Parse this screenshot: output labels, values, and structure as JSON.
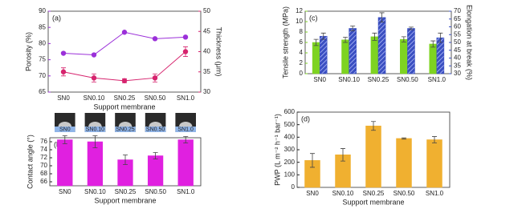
{
  "chart_data": [
    {
      "type": "line",
      "label": "(a)",
      "x_label": "Support membrane",
      "y_label": "Porosity (%)",
      "y2_label": "Thickness (μm)",
      "categories": [
        "SN0",
        "SN0.10",
        "SN0.25",
        "SN0.50",
        "SN1.0"
      ],
      "ylim": [
        65,
        90
      ],
      "yticks": [
        65,
        70,
        75,
        80,
        85,
        90
      ],
      "y2lim": [
        30,
        50
      ],
      "y2ticks": [
        30,
        35,
        40,
        45,
        50
      ],
      "series": [
        {
          "name": "Porosity",
          "color": "#9b30d9",
          "values": [
            77,
            76.5,
            83.5,
            81.5,
            82
          ]
        },
        {
          "name": "Thickness",
          "color": "#d6246e",
          "axis": "y2",
          "values": [
            35,
            33.5,
            32.8,
            33.5,
            40
          ],
          "errors": [
            1,
            1,
            0.5,
            1,
            1.2
          ]
        }
      ]
    },
    {
      "type": "bar",
      "label": "(c)",
      "y_label": "Tensile strength (MPa)",
      "y2_label": "Elongation at break (%)",
      "categories": [
        "SN0",
        "SN0.10",
        "SN0.25",
        "SN0.50",
        "SN1.0"
      ],
      "ylim": [
        0,
        12
      ],
      "yticks": [
        0,
        2,
        4,
        6,
        8,
        10,
        12
      ],
      "y2lim": [
        30,
        70
      ],
      "y2ticks": [
        30,
        35,
        40,
        45,
        50,
        55,
        60,
        65,
        70
      ],
      "series": [
        {
          "name": "Tensile strength",
          "color": "#7ed321",
          "values": [
            6.0,
            6.5,
            7.1,
            6.6,
            5.7
          ],
          "errors": [
            0.6,
            0.5,
            0.7,
            0.5,
            0.6
          ]
        },
        {
          "name": "Elongation at break",
          "color": "#3a4fc1",
          "axis": "y2",
          "values": [
            54,
            59,
            66,
            59,
            53
          ],
          "errors": [
            2,
            1.5,
            3,
            0.8,
            3
          ]
        }
      ]
    },
    {
      "type": "bar",
      "label": "(b)",
      "x_label": "Support membrane",
      "y_label": "Contact angle (°)",
      "categories": [
        "SN0",
        "SN0.10",
        "SN0.25",
        "SN0.50",
        "SN1.0"
      ],
      "ylim": [
        65,
        77
      ],
      "yticks": [
        66,
        68,
        70,
        72,
        74,
        76
      ],
      "series": [
        {
          "name": "Contact angle",
          "color": "#e020e0",
          "values": [
            76.5,
            76,
            71.5,
            72.5,
            76.5
          ],
          "errors": [
            1,
            1.5,
            1.2,
            0.8,
            0.8
          ]
        }
      ]
    },
    {
      "type": "bar",
      "label": "(d)",
      "x_label": "Support membrane",
      "y_label": "PWP (L m⁻² h⁻¹ bar⁻¹)",
      "categories": [
        "SN0",
        "SN0.10",
        "SN0.25",
        "SN0.50",
        "SN1.0"
      ],
      "ylim": [
        0,
        600
      ],
      "yticks": [
        0,
        100,
        200,
        300,
        400,
        500,
        600
      ],
      "series": [
        {
          "name": "PWP",
          "color": "#f0b030",
          "values": [
            215,
            260,
            490,
            390,
            380
          ],
          "errors": [
            55,
            50,
            35,
            5,
            25
          ]
        }
      ]
    }
  ]
}
